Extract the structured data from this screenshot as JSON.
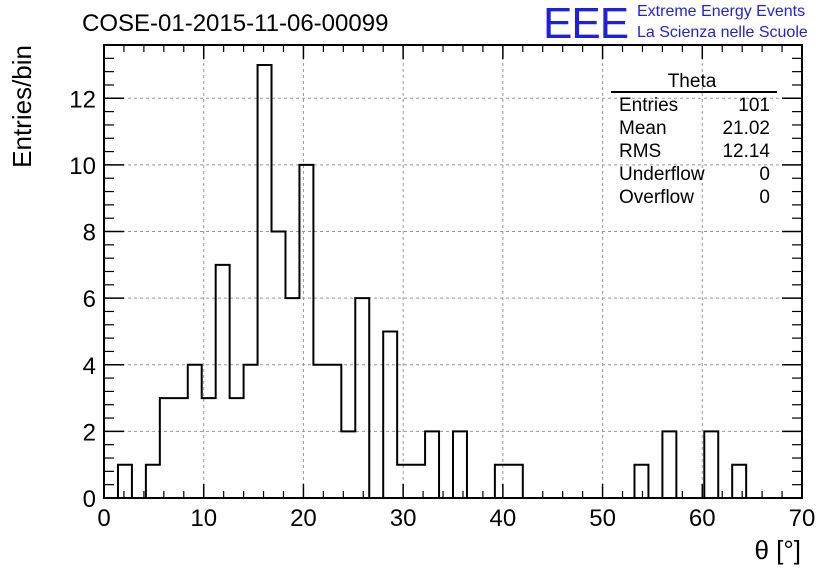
{
  "title": "COSE-01-2015-11-06-00099",
  "logo": {
    "mark": "EEE",
    "line1": "Extreme Energy Events",
    "line2": "La Scienza nelle Scuole",
    "color": "#1f1fe0"
  },
  "stats": {
    "name": "Theta",
    "rows": [
      {
        "label": "Entries",
        "value": "101"
      },
      {
        "label": "Mean",
        "value": "21.02"
      },
      {
        "label": "RMS",
        "value": "12.14"
      },
      {
        "label": "Underflow",
        "value": "0"
      },
      {
        "label": "Overflow",
        "value": "0"
      }
    ]
  },
  "chart_data": {
    "type": "bar",
    "title": "COSE-01-2015-11-06-00099",
    "xlabel": "θ [°]",
    "ylabel": "Entries/bin",
    "xlim": [
      0,
      70
    ],
    "ylim": [
      0,
      13.6
    ],
    "grid": true,
    "bin_edges": [
      0,
      1.4,
      2.8,
      4.2,
      5.6,
      7.0,
      8.4,
      9.8,
      11.2,
      12.6,
      14.0,
      15.4,
      16.8,
      18.2,
      19.6,
      21.0,
      22.4,
      23.8,
      25.2,
      26.6,
      28.0,
      29.4,
      30.8,
      32.2,
      33.6,
      35.0,
      36.4,
      37.8,
      39.2,
      40.6,
      42.0,
      43.4,
      44.8,
      46.2,
      47.6,
      49.0,
      50.4,
      51.8,
      53.2,
      54.6,
      56.0,
      57.4,
      58.8,
      60.2,
      61.6,
      63.0,
      64.4,
      65.8,
      67.2,
      68.6,
      70.0
    ],
    "values": [
      0,
      1,
      0,
      1,
      3,
      3,
      4,
      3,
      7,
      3,
      4,
      13,
      8,
      6,
      10,
      4,
      4,
      2,
      6,
      0,
      5,
      1,
      1,
      2,
      0,
      2,
      0,
      0,
      1,
      1,
      0,
      0,
      0,
      0,
      0,
      0,
      0,
      0,
      1,
      0,
      2,
      0,
      0,
      2,
      0,
      1,
      0,
      0,
      0,
      0
    ],
    "xticks": [
      "0",
      "10",
      "20",
      "30",
      "40",
      "50",
      "60",
      "70"
    ],
    "yticks": [
      "0",
      "2",
      "4",
      "6",
      "8",
      "10",
      "12"
    ],
    "line_color": "#000000",
    "grid_color": "#999999"
  }
}
